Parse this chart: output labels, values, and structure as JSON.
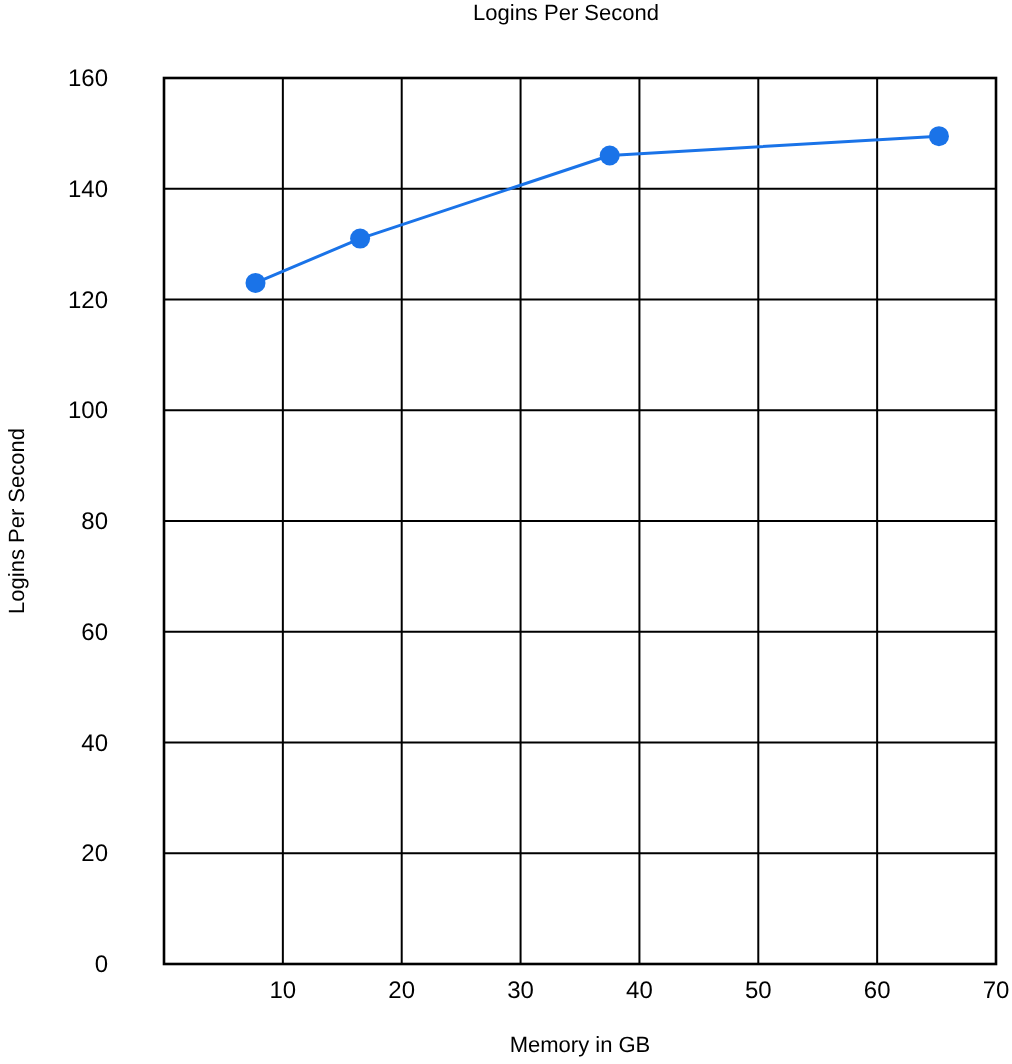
{
  "chart_data": {
    "type": "line",
    "title": "Logins Per Second",
    "xlabel": "Memory in GB",
    "ylabel": "Logins Per Second",
    "x": [
      7.7,
      16.5,
      37.5,
      65.2
    ],
    "series": [
      {
        "color": "#1a73e8",
        "values": [
          123,
          131,
          146,
          149.5
        ]
      }
    ],
    "xlim": [
      0,
      70
    ],
    "xticks": [
      {
        "value": 0,
        "label": null
      },
      10,
      20,
      30,
      40,
      50,
      60,
      70
    ],
    "ylim": [
      0,
      160
    ],
    "yticks": [
      0,
      20,
      40,
      60,
      80,
      100,
      120,
      140,
      160
    ],
    "grid": true,
    "marker": "circle"
  }
}
